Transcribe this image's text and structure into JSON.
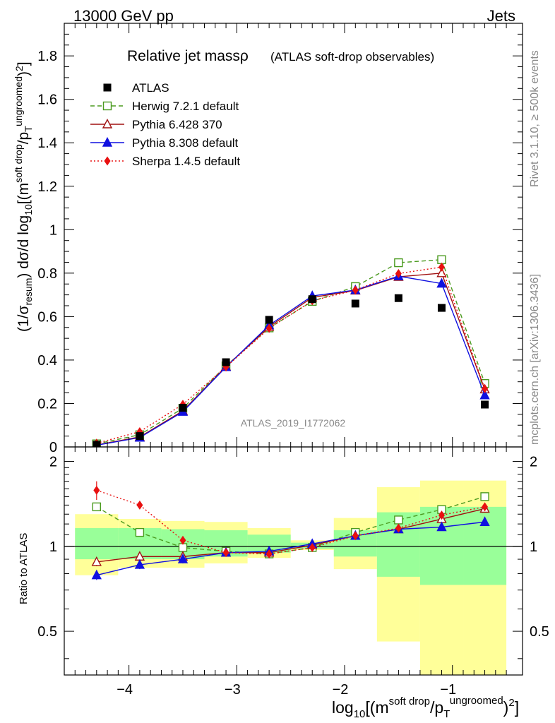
{
  "header": {
    "left": "13000 GeV pp",
    "right": "Jets"
  },
  "side_text": {
    "rivet": "Rivet 3.1.10, ≥ 500k events",
    "mcplots": "mcplots.cern.ch [arXiv:1306.3436]"
  },
  "watermark": "ATLAS_2019_I1772062",
  "chart_data": [
    {
      "type": "line",
      "panel": "main",
      "title": "Relative jet massρ",
      "subtitle": "(ATLAS soft-drop observables)",
      "ylabel": "(1/σ_resum) dσ/d log10[(m^{soft drop}/p_T^{ungroomed})^2]",
      "xlabel": "log10[(m^{soft drop}/p_T^{ungroomed})^2]",
      "xlim": [
        -4.6,
        -0.35
      ],
      "ylim": [
        0,
        1.95
      ],
      "x": [
        -4.3,
        -3.9,
        -3.5,
        -3.1,
        -2.7,
        -2.3,
        -1.9,
        -1.5,
        -1.1,
        -0.7
      ],
      "yticks": [
        0,
        0.2,
        0.4,
        0.6,
        0.8,
        1,
        1.2,
        1.4,
        1.6,
        1.8
      ],
      "yticklabels": [
        "0",
        "0.2",
        "0.4",
        "0.6",
        "0.8",
        "1",
        "1.2",
        "1.4",
        "1.6",
        "1.8"
      ],
      "series": [
        {
          "name": "ATLAS",
          "color": "#000000",
          "marker": "square-filled",
          "line": "none",
          "values": [
            0.01,
            0.05,
            0.18,
            0.39,
            0.585,
            0.68,
            0.66,
            0.685,
            0.64,
            0.195
          ]
        },
        {
          "name": "Herwig 7.2.1 default",
          "color": "#4a9a1e",
          "marker": "square-open",
          "line": "dashed",
          "values": [
            0.014,
            0.056,
            0.178,
            0.373,
            0.548,
            0.67,
            0.738,
            0.848,
            0.862,
            0.292
          ]
        },
        {
          "name": "Pythia 6.428 370",
          "color": "#a01010",
          "marker": "triangle-open",
          "line": "solid",
          "values": [
            0.009,
            0.046,
            0.166,
            0.37,
            0.553,
            0.688,
            0.72,
            0.783,
            0.8,
            0.265
          ]
        },
        {
          "name": "Pythia 8.308 default",
          "color": "#1010e0",
          "marker": "triangle-filled",
          "line": "solid",
          "values": [
            0.008,
            0.043,
            0.162,
            0.368,
            0.56,
            0.695,
            0.722,
            0.786,
            0.752,
            0.238
          ]
        },
        {
          "name": "Sherpa 1.4.5 default",
          "color": "#e81010",
          "marker": "diamond-filled",
          "line": "dotted",
          "values": [
            0.017,
            0.07,
            0.196,
            0.368,
            0.546,
            0.673,
            0.722,
            0.798,
            0.828,
            0.268
          ]
        }
      ]
    },
    {
      "type": "line",
      "panel": "ratio",
      "ylabel": "Ratio to ATLAS",
      "xlim": [
        -4.6,
        -0.35
      ],
      "ylim": [
        0.35,
        2.25
      ],
      "log_y": true,
      "yticks": [
        0.5,
        1,
        2
      ],
      "yticklabels": [
        "0.5",
        "1",
        "2"
      ],
      "xticks": [
        -4,
        -3,
        -2,
        -1
      ],
      "xticklabels": [
        "−4",
        "−3",
        "−2",
        "−1"
      ],
      "bins": [
        [
          -4.5,
          -4.1
        ],
        [
          -4.1,
          -3.7
        ],
        [
          -3.7,
          -3.3
        ],
        [
          -3.3,
          -2.9
        ],
        [
          -2.9,
          -2.5
        ],
        [
          -2.5,
          -2.1
        ],
        [
          -2.1,
          -1.7
        ],
        [
          -1.7,
          -1.3
        ],
        [
          -1.3,
          -0.9
        ],
        [
          -0.9,
          -0.5
        ]
      ],
      "band_yellow": [
        [
          0.79,
          1.3
        ],
        [
          0.84,
          1.25
        ],
        [
          0.84,
          1.23
        ],
        [
          0.87,
          1.22
        ],
        [
          0.91,
          1.16
        ],
        [
          0.97,
          1.05
        ],
        [
          0.83,
          1.26
        ],
        [
          0.46,
          1.62
        ],
        [
          0.33,
          1.71
        ],
        [
          0.33,
          1.71
        ]
      ],
      "band_green": [
        [
          0.9,
          1.16
        ],
        [
          0.9,
          1.16
        ],
        [
          0.9,
          1.15
        ],
        [
          0.92,
          1.14
        ],
        [
          0.95,
          1.1
        ],
        [
          0.98,
          1.03
        ],
        [
          0.92,
          1.14
        ],
        [
          0.78,
          1.32
        ],
        [
          0.73,
          1.38
        ],
        [
          0.73,
          1.38
        ]
      ],
      "series": [
        {
          "name": "Herwig 7.2.1 default",
          "color": "#4a9a1e",
          "marker": "square-open",
          "line": "dashed",
          "values": [
            1.38,
            1.12,
            0.99,
            0.96,
            0.94,
            0.99,
            1.12,
            1.24,
            1.35,
            1.5
          ]
        },
        {
          "name": "Pythia 6.428 370",
          "color": "#a01010",
          "marker": "triangle-open",
          "line": "solid",
          "values": [
            0.88,
            0.92,
            0.92,
            0.95,
            0.95,
            1.01,
            1.09,
            1.15,
            1.25,
            1.36
          ]
        },
        {
          "name": "Pythia 8.308 default",
          "color": "#1010e0",
          "marker": "triangle-filled",
          "line": "solid",
          "values": [
            0.79,
            0.86,
            0.9,
            0.95,
            0.96,
            1.02,
            1.09,
            1.15,
            1.17,
            1.22
          ]
        },
        {
          "name": "Sherpa 1.4.5 default",
          "color": "#e81010",
          "marker": "diamond-filled",
          "line": "dotted",
          "values": [
            1.58,
            1.4,
            1.05,
            0.95,
            0.94,
            0.99,
            1.09,
            1.16,
            1.29,
            1.38
          ],
          "errors": [
            0.12,
            0.04,
            0.02,
            0.01,
            0.01,
            0.01,
            0.01,
            0.01,
            0.02,
            0.03
          ]
        }
      ]
    }
  ]
}
